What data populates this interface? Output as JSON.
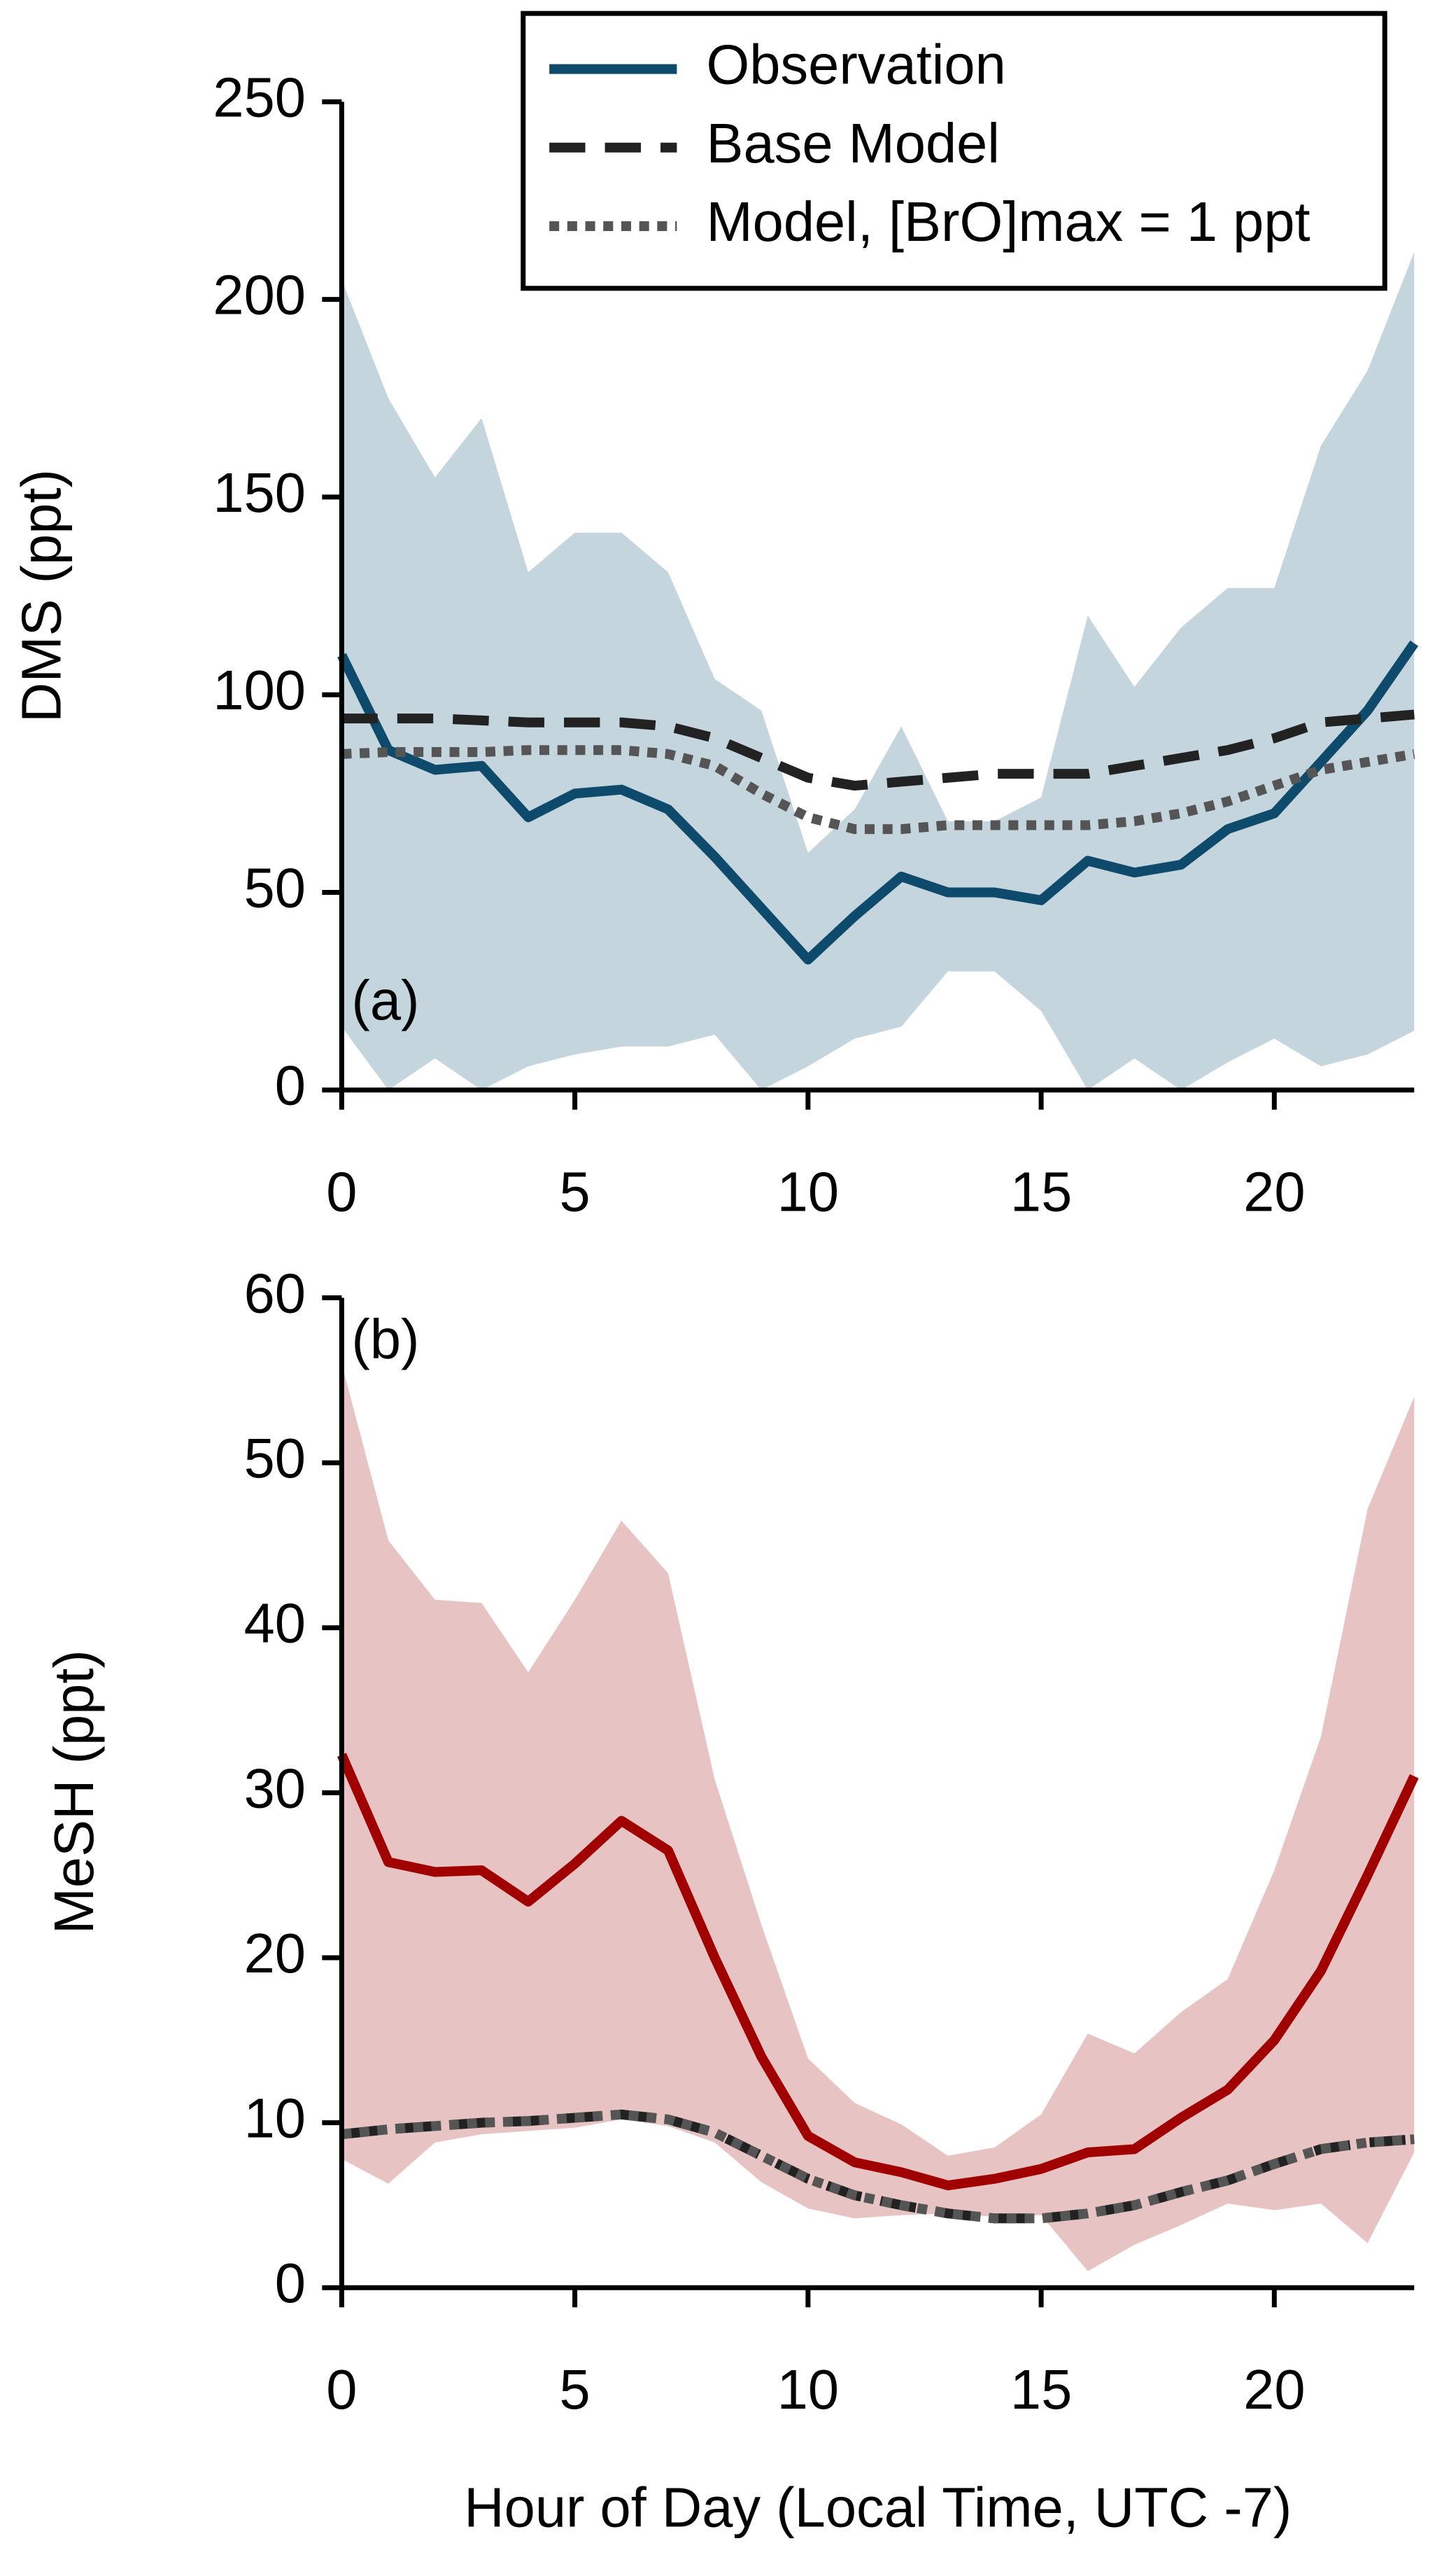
{
  "chart_data": [
    {
      "type": "line",
      "annotation": "(a)",
      "ylabel": "DMS (ppt)",
      "x": [
        0,
        1,
        2,
        3,
        4,
        5,
        6,
        7,
        8,
        9,
        10,
        11,
        12,
        13,
        14,
        15,
        16,
        17,
        18,
        19,
        20,
        21,
        22,
        23
      ],
      "xlim": [
        0,
        23
      ],
      "xticks": [
        0,
        5,
        10,
        15,
        20
      ],
      "ylim": [
        0,
        250
      ],
      "yticks": [
        0,
        50,
        100,
        150,
        200,
        250
      ],
      "legend": "upper right",
      "band_color": "#c5d5de",
      "band_upper": [
        205,
        175,
        155,
        170,
        131,
        141,
        141,
        131,
        104,
        96,
        60,
        71,
        92,
        68,
        68,
        74,
        120,
        102,
        117,
        127,
        127,
        163,
        182,
        212
      ],
      "band_lower": [
        16,
        0,
        8,
        0,
        6,
        9,
        11,
        11,
        14,
        0,
        6,
        13,
        16,
        30,
        30,
        20,
        0,
        8,
        0,
        7,
        13,
        6,
        9,
        15
      ],
      "series": [
        {
          "name": "Observation",
          "color": "#0d4a6b",
          "style": "solid",
          "values": [
            110,
            86,
            81,
            82,
            69,
            75,
            76,
            71,
            59,
            46,
            33,
            44,
            54,
            50,
            50,
            48,
            58,
            55,
            57,
            66,
            70,
            83,
            96,
            113
          ]
        },
        {
          "name": "Base Model",
          "color": "#222222",
          "style": "dashed",
          "values": [
            94,
            94,
            94,
            93.5,
            93,
            93,
            93,
            92,
            89,
            84,
            79,
            77,
            78,
            79,
            80,
            80,
            80,
            82,
            84,
            86,
            89,
            93,
            94,
            95
          ]
        },
        {
          "name": "Model, [BrO]max = 1 ppt",
          "color": "#555555",
          "style": "dotted",
          "values": [
            85,
            85.5,
            85.5,
            85.5,
            86,
            86,
            86,
            85,
            82,
            75,
            69,
            66,
            66,
            67,
            67,
            67,
            67,
            68,
            70,
            73,
            77,
            81,
            83,
            85
          ]
        }
      ]
    },
    {
      "type": "line",
      "annotation": "(b)",
      "ylabel": "MeSH (ppt)",
      "xlabel": "Hour of Day (Local Time, UTC -7)",
      "x": [
        0,
        1,
        2,
        3,
        4,
        5,
        6,
        7,
        8,
        9,
        10,
        11,
        12,
        13,
        14,
        15,
        16,
        17,
        18,
        19,
        20,
        21,
        22,
        23
      ],
      "xlim": [
        0,
        23
      ],
      "xticks": [
        0,
        5,
        10,
        15,
        20
      ],
      "ylim": [
        0,
        60
      ],
      "yticks": [
        0,
        10,
        20,
        30,
        40,
        50,
        60
      ],
      "band_color": "#e8c3c3",
      "band_upper": [
        56,
        45.3,
        41.7,
        41.5,
        37.3,
        41.7,
        46.5,
        43.3,
        30.8,
        22,
        13.9,
        11.2,
        9.9,
        8,
        8.5,
        10.5,
        15.4,
        14.2,
        16.7,
        18.7,
        25.3,
        33.4,
        47.2,
        54
      ],
      "band_lower": [
        7.8,
        6.3,
        8.8,
        9.3,
        9.5,
        9.7,
        10.2,
        9.8,
        8.8,
        6.4,
        4.8,
        4.2,
        4.4,
        4.5,
        4.3,
        4.4,
        1,
        2.6,
        3.8,
        5.1,
        4.7,
        5.1,
        2.7,
        8.2
      ],
      "series": [
        {
          "color": "#a00000",
          "style": "solid",
          "values": [
            32.3,
            25.8,
            25.2,
            25.3,
            23.4,
            25.7,
            28.3,
            26.5,
            20,
            14,
            9.2,
            7.6,
            7,
            6.2,
            6.6,
            7.2,
            8.2,
            8.4,
            10.3,
            12,
            15,
            19.2,
            25,
            31
          ]
        },
        {
          "color": "#222222",
          "style": "dashed",
          "values": [
            9.3,
            9.6,
            9.8,
            10,
            10.1,
            10.3,
            10.5,
            10.2,
            9.4,
            8,
            6.6,
            5.6,
            5,
            4.5,
            4.2,
            4.2,
            4.5,
            5,
            5.8,
            6.5,
            7.5,
            8.4,
            8.8,
            9
          ]
        },
        {
          "color": "#555555",
          "style": "dotted",
          "values": [
            9.3,
            9.6,
            9.8,
            10,
            10.1,
            10.3,
            10.5,
            10.2,
            9.4,
            8,
            6.6,
            5.6,
            5,
            4.5,
            4.2,
            4.2,
            4.5,
            5,
            5.8,
            6.5,
            7.5,
            8.4,
            8.8,
            9
          ]
        }
      ]
    }
  ]
}
